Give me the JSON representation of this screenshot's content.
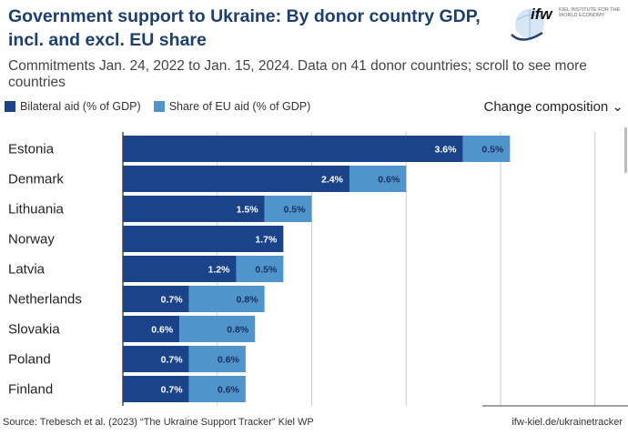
{
  "header": {
    "title": "Government support to Ukraine: By donor country GDP, incl. and excl. EU share",
    "subtitle": "Commitments Jan. 24, 2022 to Jan. 15, 2024. Data on 41 donor countries; scroll to see more countries",
    "logo_text": "ifw",
    "logo_sub": "KIEL INSTITUTE FOR THE WORLD ECONOMY"
  },
  "controls": {
    "change_composition": "Change composition ⌄"
  },
  "chart_data": {
    "type": "bar",
    "orientation": "horizontal",
    "stacked": true,
    "categories": [
      "Estonia",
      "Denmark",
      "Lithuania",
      "Norway",
      "Latvia",
      "Netherlands",
      "Slovakia",
      "Poland",
      "Finland"
    ],
    "series": [
      {
        "name": "Bilateral aid (% of GDP)",
        "color": "#1a4389",
        "values": [
          3.6,
          2.4,
          1.5,
          1.7,
          1.2,
          0.7,
          0.6,
          0.7,
          0.7
        ],
        "labels": [
          "3.6%",
          "2.4%",
          "1.5%",
          "1.7%",
          "1.2%",
          "0.7%",
          "0.6%",
          "0.7%",
          "0.7%"
        ]
      },
      {
        "name": "Share of EU aid (% of GDP)",
        "color": "#4f95cc",
        "values": [
          0.5,
          0.6,
          0.5,
          0,
          0.5,
          0.8,
          0.8,
          0.6,
          0.6
        ],
        "labels": [
          "0.5%",
          "0.6%",
          "0.5%",
          "",
          "0.5%",
          "0.8%",
          "0.8%",
          "0.6%",
          "0.6%"
        ]
      }
    ],
    "xlim": [
      0,
      5.35
    ],
    "grid": true,
    "gridlines": [
      1,
      2,
      3,
      4,
      5
    ],
    "legend": "top-left"
  },
  "footer": {
    "source": "Source: Trebesch et al. (2023) “The Ukraine Support Tracker” Kiel WP",
    "url": "ifw-kiel.de/ukrainetracker"
  }
}
